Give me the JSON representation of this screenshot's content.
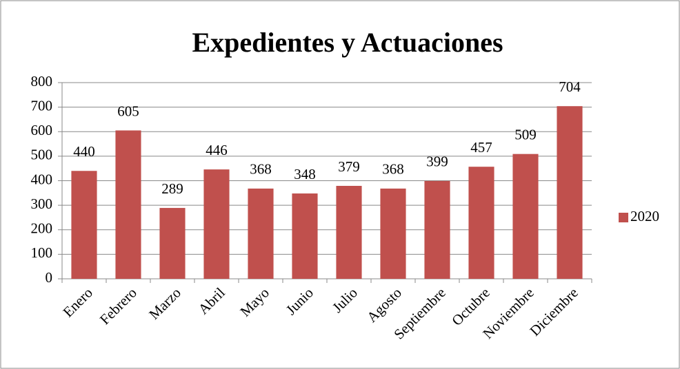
{
  "chart_data": {
    "type": "bar",
    "title": "Expedientes y Actuaciones",
    "categories": [
      "Enero",
      "Febrero",
      "Marzo",
      "Abril",
      "Mayo",
      "Junio",
      "Julio",
      "Agosto",
      "Septiembre",
      "Octubre",
      "Noviembre",
      "Diciembre"
    ],
    "series": [
      {
        "name": "2020",
        "color": "#c0504d",
        "values": [
          440,
          605,
          289,
          446,
          368,
          348,
          379,
          368,
          399,
          457,
          509,
          704
        ]
      }
    ],
    "ylim": [
      0,
      800
    ],
    "yticks": [
      0,
      100,
      200,
      300,
      400,
      500,
      600,
      700,
      800
    ],
    "grid": true,
    "legend": "right"
  }
}
